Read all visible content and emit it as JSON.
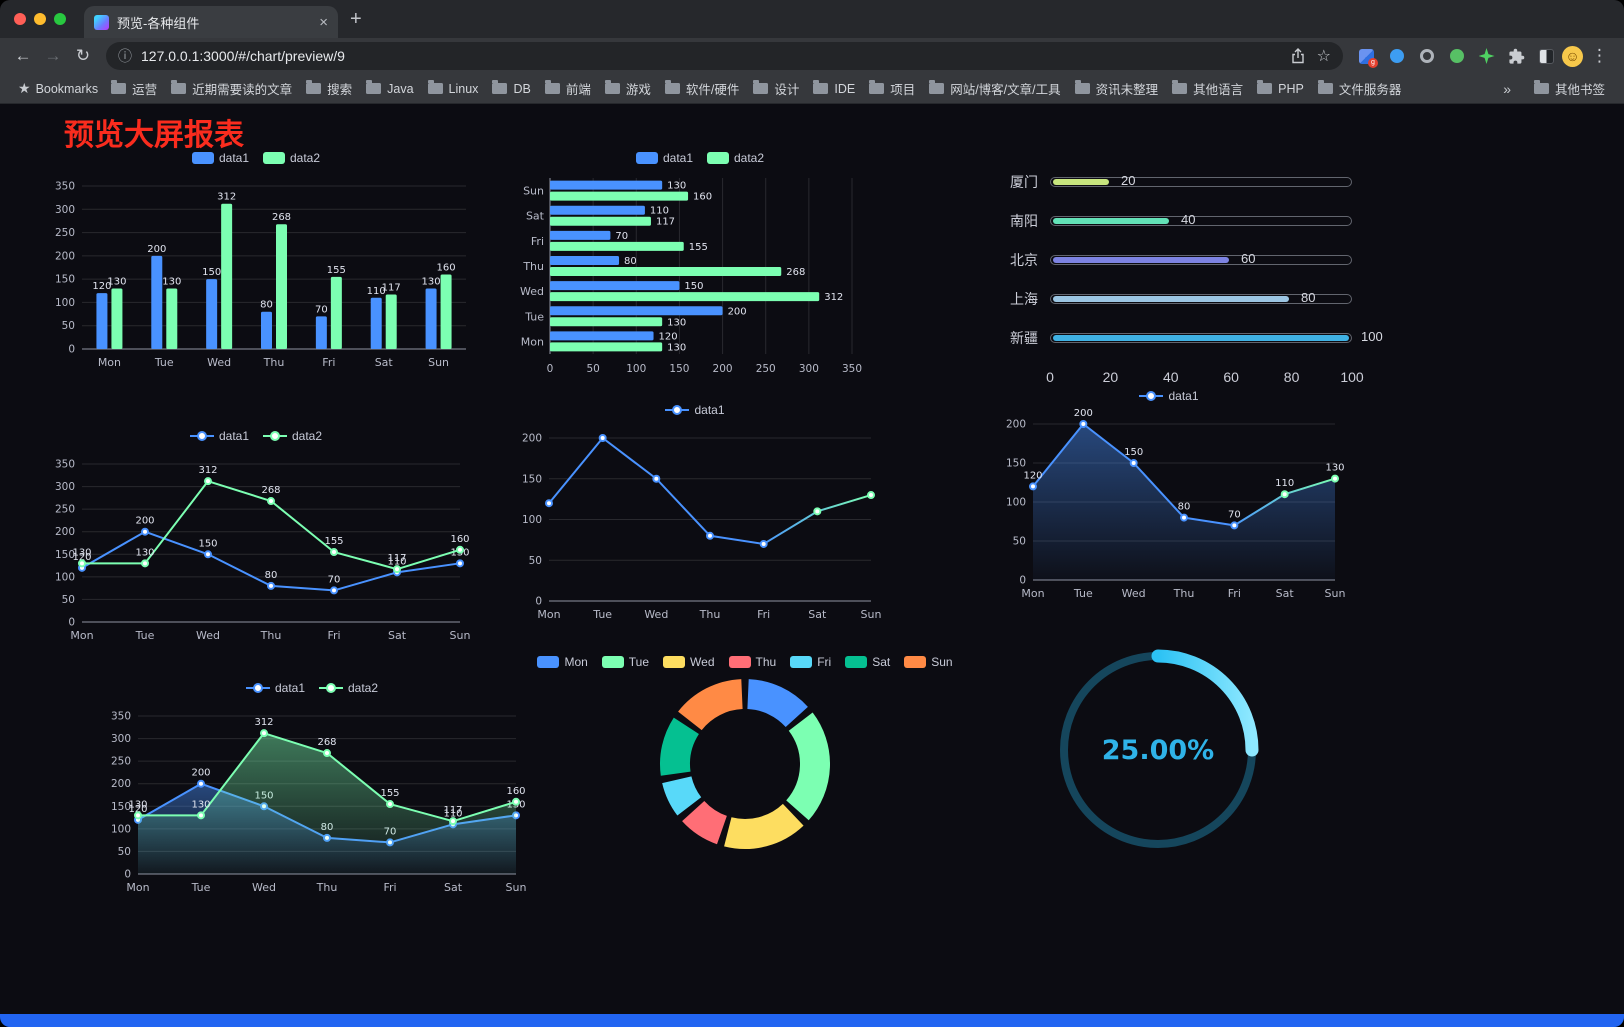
{
  "browser": {
    "tab_title": "预览-各种组件",
    "url": "127.0.0.1:3000/#/chart/preview/9",
    "glyphs": {
      "close": "×",
      "new_tab": "+",
      "back": "←",
      "forward": "→",
      "reload": "↻",
      "info": "ⓘ",
      "star": "☆",
      "menu": "⋮",
      "bookmarks_star": "★",
      "overflow": "»"
    },
    "bookmarks": {
      "label": "Bookmarks",
      "folders": [
        "运营",
        "近期需要读的文章",
        "搜索",
        "Java",
        "Linux",
        "DB",
        "前端",
        "游戏",
        "软件/硬件",
        "设计",
        "IDE",
        "项目",
        "网站/博客/文章/工具",
        "资讯未整理",
        "其他语言",
        "PHP",
        "文件服务器"
      ],
      "other_label": "其他书签"
    }
  },
  "page": {
    "title": "预览大屏报表",
    "title_color": "#fa2c1e",
    "background": "#0c0c12",
    "accent_bar_color": "#2265f1"
  },
  "charts": [
    {
      "type": "bar",
      "legend": [
        "data1",
        "data2"
      ],
      "categories": [
        "Mon",
        "Tue",
        "Wed",
        "Thu",
        "Fri",
        "Sat",
        "Sun"
      ],
      "series": [
        {
          "name": "data1",
          "color": "#4992ff",
          "values": [
            120,
            200,
            150,
            80,
            70,
            110,
            130
          ]
        },
        {
          "name": "data2",
          "color": "#7cffb2",
          "values": [
            130,
            130,
            312,
            268,
            155,
            117,
            160
          ]
        }
      ],
      "ylim": [
        0,
        350
      ],
      "ystep": 50
    },
    {
      "type": "hbar",
      "legend": [
        "data1",
        "data2"
      ],
      "categories": [
        "Mon",
        "Tue",
        "Wed",
        "Thu",
        "Fri",
        "Sat",
        "Sun"
      ],
      "series": [
        {
          "name": "data1",
          "color": "#4992ff",
          "values": [
            120,
            200,
            150,
            80,
            70,
            110,
            130
          ]
        },
        {
          "name": "data2",
          "color": "#7cffb2",
          "values": [
            130,
            130,
            312,
            268,
            155,
            117,
            160
          ]
        }
      ],
      "xlim": [
        0,
        350
      ],
      "xstep": 50
    },
    {
      "type": "progress",
      "max": 100,
      "axis_ticks": [
        0,
        20,
        40,
        60,
        80,
        100
      ],
      "items": [
        {
          "label": "厦门",
          "value": 20,
          "color": "#c8e67e"
        },
        {
          "label": "南阳",
          "value": 40,
          "color": "#63e2b7"
        },
        {
          "label": "北京",
          "value": 60,
          "color": "#7d83e2"
        },
        {
          "label": "上海",
          "value": 80,
          "color": "#9cc6e3"
        },
        {
          "label": "新疆",
          "value": 100,
          "color": "#3fb1e3"
        }
      ]
    },
    {
      "type": "line",
      "legend": [
        "data1",
        "data2"
      ],
      "labels": true,
      "categories": [
        "Mon",
        "Tue",
        "Wed",
        "Thu",
        "Fri",
        "Sat",
        "Sun"
      ],
      "series": [
        {
          "name": "data1",
          "color": "#4992ff",
          "values": [
            120,
            200,
            150,
            80,
            70,
            110,
            130
          ]
        },
        {
          "name": "data2",
          "color": "#7cffb2",
          "values": [
            130,
            130,
            312,
            268,
            155,
            117,
            160
          ]
        }
      ],
      "ylim": [
        0,
        350
      ],
      "ystep": 50
    },
    {
      "type": "line",
      "legend": [
        "data1"
      ],
      "labels": false,
      "categories": [
        "Mon",
        "Tue",
        "Wed",
        "Thu",
        "Fri",
        "Sat",
        "Sun"
      ],
      "series": [
        {
          "name": "data1",
          "color": "#4992ff",
          "gradient": [
            "#4992ff",
            "#7cffb2"
          ],
          "values": [
            120,
            200,
            150,
            80,
            70,
            110,
            130
          ]
        }
      ],
      "ylim": [
        0,
        200
      ],
      "ystep": 50
    },
    {
      "type": "line",
      "legend": [
        "data1"
      ],
      "labels": true,
      "categories": [
        "Mon",
        "Tue",
        "Wed",
        "Thu",
        "Fri",
        "Sat",
        "Sun"
      ],
      "series": [
        {
          "name": "data1",
          "color": "#4992ff",
          "gradient": [
            "#4992ff",
            "#7cffb2"
          ],
          "area": true,
          "values": [
            120,
            200,
            150,
            80,
            70,
            110,
            130
          ]
        }
      ],
      "ylim": [
        0,
        200
      ],
      "ystep": 50
    },
    {
      "type": "line",
      "legend": [
        "data1",
        "data2"
      ],
      "labels": true,
      "categories": [
        "Mon",
        "Tue",
        "Wed",
        "Thu",
        "Fri",
        "Sat",
        "Sun"
      ],
      "series": [
        {
          "name": "data1",
          "color": "#4992ff",
          "area": true,
          "values": [
            120,
            200,
            150,
            80,
            70,
            110,
            130
          ]
        },
        {
          "name": "data2",
          "color": "#7cffb2",
          "area": true,
          "values": [
            130,
            130,
            312,
            268,
            155,
            117,
            160
          ]
        }
      ],
      "ylim": [
        0,
        350
      ],
      "ystep": 50
    },
    {
      "type": "donut",
      "categories": [
        "Mon",
        "Tue",
        "Wed",
        "Thu",
        "Fri",
        "Sat",
        "Sun"
      ],
      "values": [
        120,
        200,
        150,
        80,
        70,
        110,
        130
      ],
      "colors": [
        "#4992ff",
        "#7cffb2",
        "#fddd60",
        "#ff6e76",
        "#58d9f9",
        "#05c091",
        "#ff8a45"
      ]
    },
    {
      "type": "gauge",
      "value": 25,
      "label": "25.00%",
      "color": "#2cc2f4",
      "track_color": "#15465c"
    }
  ]
}
